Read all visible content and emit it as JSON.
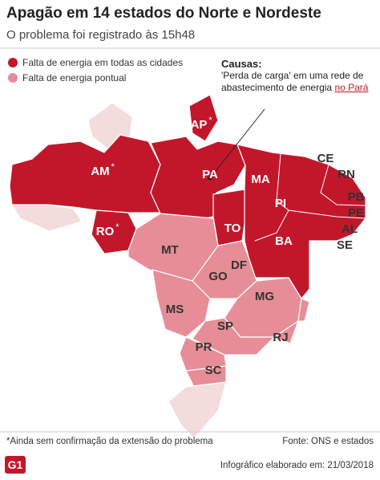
{
  "header": {
    "title": "Apagão em 14 estados do Norte e Nordeste",
    "subtitle": "O problema foi registrado às 15h48"
  },
  "legend": [
    {
      "label": "Falta de energia em todas as cidades",
      "color": "#c2172b"
    },
    {
      "label": "Falta de energia pontual",
      "color": "#e78d97"
    }
  ],
  "causes": {
    "title": "Causas:",
    "text": "'Perda de carga' em uma rede de abastecimento de energia",
    "highlight": "no Pará"
  },
  "states": [
    {
      "label": "AP",
      "marker": "*"
    },
    {
      "label": "AM",
      "marker": "*"
    },
    {
      "label": "PA"
    },
    {
      "label": "RO",
      "marker": "*"
    },
    {
      "label": "MA"
    },
    {
      "label": "PI"
    },
    {
      "label": "CE"
    },
    {
      "label": "RN"
    },
    {
      "label": "PB"
    },
    {
      "label": "PE"
    },
    {
      "label": "AL"
    },
    {
      "label": "SE"
    },
    {
      "label": "BA"
    },
    {
      "label": "TO"
    },
    {
      "label": "MT"
    },
    {
      "label": "DF"
    },
    {
      "label": "GO"
    },
    {
      "label": "MS"
    },
    {
      "label": "MG"
    },
    {
      "label": "SP"
    },
    {
      "label": "RJ"
    },
    {
      "label": "PR"
    },
    {
      "label": "SC"
    }
  ],
  "footer": {
    "note": "*Ainda sem confirmação da extensão do problema",
    "source": "Fonte: ONS e estados",
    "logo": "G1",
    "credit": "Infográfico elaborado em: 21/03/2018"
  }
}
